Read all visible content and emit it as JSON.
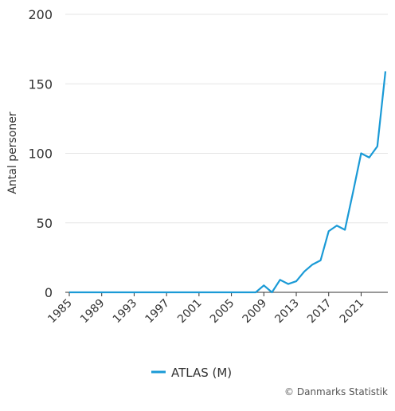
{
  "chart_data": {
    "type": "line",
    "y_label": "Antal personer",
    "x": [
      1985,
      1986,
      1987,
      1988,
      1989,
      1990,
      1991,
      1992,
      1993,
      1994,
      1995,
      1996,
      1997,
      1998,
      1999,
      2000,
      2001,
      2002,
      2003,
      2004,
      2005,
      2006,
      2007,
      2008,
      2009,
      2010,
      2011,
      2012,
      2013,
      2014,
      2015,
      2016,
      2017,
      2018,
      2019,
      2020,
      2021,
      2022,
      2023,
      2024
    ],
    "series": [
      {
        "name": "ATLAS (M)",
        "color": "#1a9ad6",
        "values": [
          0,
          0,
          0,
          0,
          0,
          0,
          0,
          0,
          0,
          0,
          0,
          0,
          0,
          0,
          0,
          0,
          0,
          0,
          0,
          0,
          0,
          0,
          0,
          0,
          5,
          0,
          9,
          6,
          8,
          15,
          20,
          23,
          44,
          48,
          45,
          72,
          100,
          97,
          105,
          159
        ]
      }
    ],
    "xlim": [
      1985,
      2024
    ],
    "xticks": [
      1985,
      1989,
      1993,
      1997,
      2001,
      2005,
      2009,
      2013,
      2017,
      2021
    ],
    "ylim": [
      0,
      200
    ],
    "yticks": [
      0,
      50,
      100,
      150,
      200
    ],
    "grid": true,
    "legend": "bottom",
    "credit": "© Danmarks Statistik"
  }
}
